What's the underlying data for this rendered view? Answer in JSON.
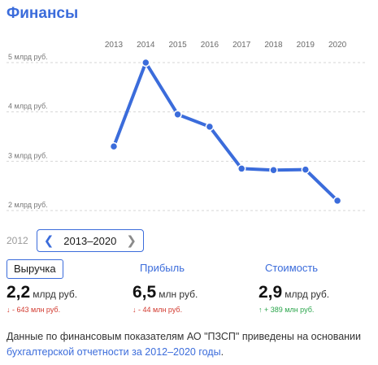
{
  "header": {
    "title": "Финансы"
  },
  "chart_data": {
    "type": "line",
    "categories": [
      "2013",
      "2014",
      "2015",
      "2016",
      "2017",
      "2018",
      "2019",
      "2020"
    ],
    "series": [
      {
        "values": [
          3.3,
          5.0,
          3.95,
          3.7,
          2.85,
          2.82,
          2.83,
          2.2
        ]
      }
    ],
    "y_ticks": [
      "2 млрд руб.",
      "3 млрд руб.",
      "4 млрд руб.",
      "5 млрд руб."
    ],
    "y_tick_values": [
      2,
      3,
      4,
      5
    ],
    "ylim": [
      2,
      5
    ],
    "grid": true,
    "color": "#3b6cdb"
  },
  "nav": {
    "prev_year": "2012",
    "range": "2013–2020",
    "prev_icon": "chevron-left-icon",
    "next_icon": "chevron-right-icon"
  },
  "tabs": [
    {
      "label": "Выручка",
      "active": true
    },
    {
      "label": "Прибыль",
      "active": false
    },
    {
      "label": "Стоимость",
      "active": false
    }
  ],
  "metrics": [
    {
      "value": "2,2",
      "unit": "млрд руб.",
      "delta": "↓ - 643 млн руб.",
      "direction": "down"
    },
    {
      "value": "6,5",
      "unit": "млн руб.",
      "delta": "↓ - 44 млн руб.",
      "direction": "down"
    },
    {
      "value": "2,9",
      "unit": "млрд руб.",
      "delta": "↑ + 389 млн руб.",
      "direction": "up"
    }
  ],
  "footnote": {
    "text": "Данные по финансовым показателям АО \"ПЗСП\" приведены на основании ",
    "link": "бухгалтерской отчетности за 2012–2020 годы",
    "end": "."
  }
}
